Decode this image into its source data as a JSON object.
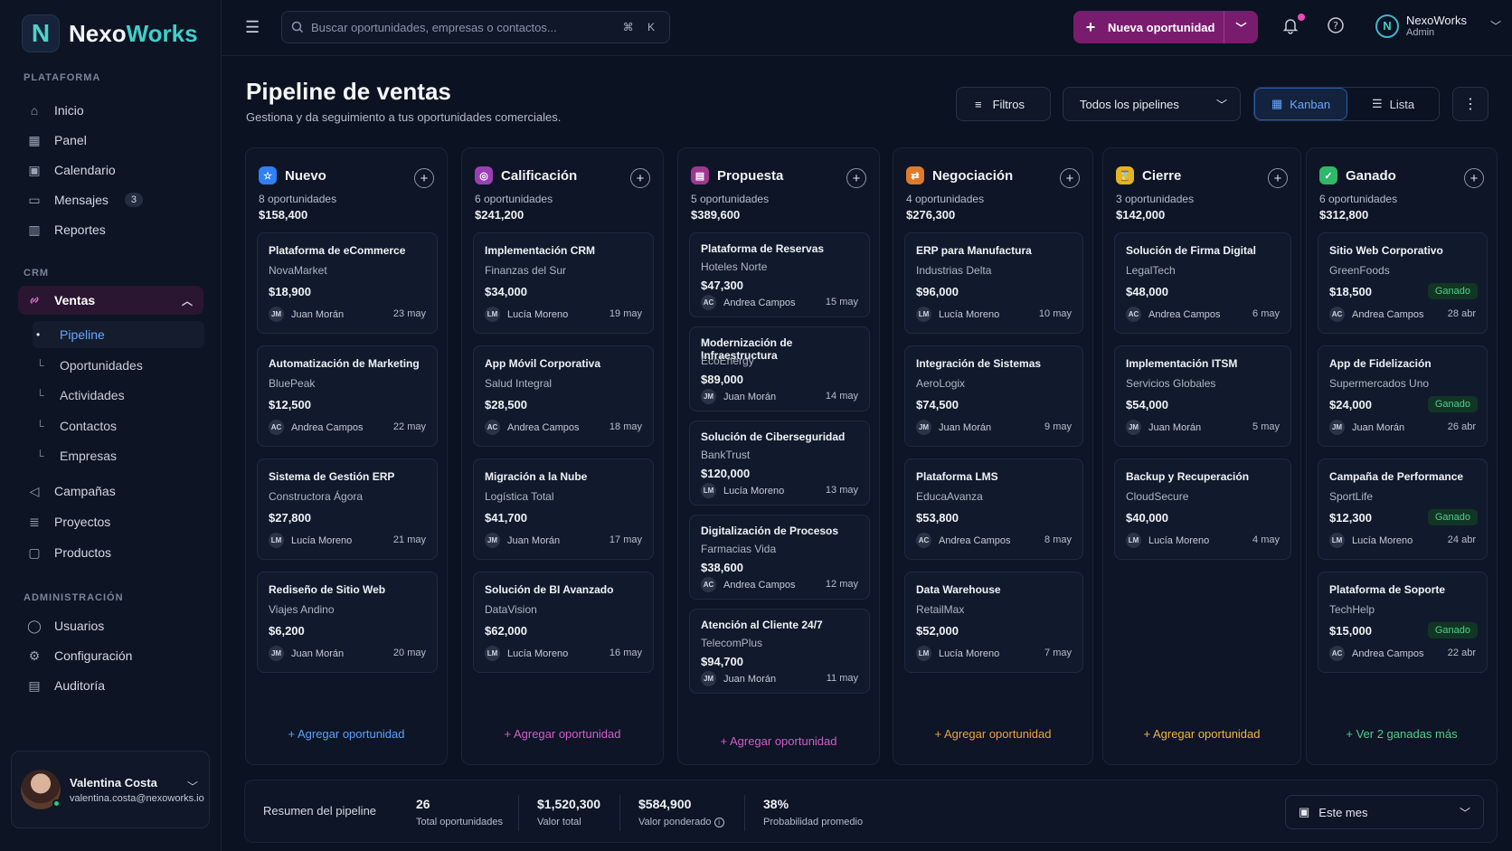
{
  "brand": {
    "name_a": "Nexo",
    "name_b": "Works",
    "mark": "N"
  },
  "sidebar": {
    "sections": {
      "platform": "PLATAFORMA",
      "crm": "CRM",
      "admin": "ADMINISTRACIÓN"
    },
    "platform_items": [
      {
        "label": "Inicio",
        "icon": "home-icon"
      },
      {
        "label": "Panel",
        "icon": "grid-icon"
      },
      {
        "label": "Calendario",
        "icon": "calendar-icon"
      },
      {
        "label": "Mensajes",
        "icon": "message-icon",
        "badge": "3"
      },
      {
        "label": "Reportes",
        "icon": "chart-icon"
      }
    ],
    "crm_item": {
      "label": "Ventas",
      "icon": "link-icon"
    },
    "crm_sub": [
      "Pipeline",
      "Oportunidades",
      "Actividades",
      "Contactos",
      "Empresas"
    ],
    "crm_items": [
      {
        "label": "Campañas",
        "icon": "megaphone-icon"
      },
      {
        "label": "Proyectos",
        "icon": "stack-icon"
      },
      {
        "label": "Productos",
        "icon": "box-icon"
      }
    ],
    "admin_items": [
      {
        "label": "Usuarios",
        "icon": "user-icon"
      },
      {
        "label": "Configuración",
        "icon": "gear-icon"
      },
      {
        "label": "Auditoría",
        "icon": "audit-icon"
      }
    ],
    "user": {
      "name": "Valentina Costa",
      "email": "valentina.costa@nexoworks.io"
    }
  },
  "topbar": {
    "search_placeholder": "Buscar oportunidades, empresas o contactos...",
    "shortcut": "⌘ K",
    "new_button": "Nueva oportunidad",
    "org_name": "NexoWorks",
    "org_role": "Admin"
  },
  "header": {
    "title": "Pipeline de ventas",
    "subtitle": "Gestiona y da seguimiento a tus oportunidades comerciales.",
    "filters": "Filtros",
    "pipeline_select": "Todos los pipelines",
    "view_kanban": "Kanban",
    "view_list": "Lista"
  },
  "columns": [
    {
      "name": "Nuevo",
      "color": "#2f7ff5",
      "icon": "☆",
      "count": "8 oportunidades",
      "total": "$158,400",
      "footer": "+ Agregar oportunidad",
      "footer_color": "#5aa2ff",
      "cards": [
        {
          "title": "Plataforma de eCommerce",
          "company": "NovaMarket",
          "amount": "$18,900",
          "initials": "JM",
          "owner": "Juan Morán",
          "date": "23 may"
        },
        {
          "title": "Automatización de Marketing",
          "company": "BluePeak",
          "amount": "$12,500",
          "initials": "AC",
          "owner": "Andrea Campos",
          "date": "22 may"
        },
        {
          "title": "Sistema de Gestión ERP",
          "company": "Constructora Ágora",
          "amount": "$27,800",
          "initials": "LM",
          "owner": "Lucía Moreno",
          "date": "21 may"
        },
        {
          "title": "Rediseño de Sitio Web",
          "company": "Viajes Andino",
          "amount": "$6,200",
          "initials": "JM",
          "owner": "Juan Morán",
          "date": "20 may"
        }
      ]
    },
    {
      "name": "Calificación",
      "color": "#9b3fb5",
      "icon": "◎",
      "count": "6 oportunidades",
      "total": "$241,200",
      "footer": "+ Agregar oportunidad",
      "footer_color": "#d65bc7",
      "cards": [
        {
          "title": "Implementación CRM",
          "company": "Finanzas del Sur",
          "amount": "$34,000",
          "initials": "LM",
          "owner": "Lucía Moreno",
          "date": "19 may"
        },
        {
          "title": "App Móvil Corporativa",
          "company": "Salud Integral",
          "amount": "$28,500",
          "initials": "AC",
          "owner": "Andrea Campos",
          "date": "18 may"
        },
        {
          "title": "Migración a la Nube",
          "company": "Logística Total",
          "amount": "$41,700",
          "initials": "JM",
          "owner": "Juan Morán",
          "date": "17 may"
        },
        {
          "title": "Solución de BI Avanzado",
          "company": "DataVision",
          "amount": "$62,000",
          "initials": "LM",
          "owner": "Lucía Moreno",
          "date": "16 may"
        }
      ]
    },
    {
      "name": "Propuesta",
      "color": "#a0378f",
      "icon": "▤",
      "count": "5 oportunidades",
      "total": "$389,600",
      "footer": "+ Agregar oportunidad",
      "footer_color": "#d65bc7",
      "cards": [
        {
          "title": "Plataforma de Reservas",
          "company": "Hoteles Norte",
          "amount": "$47,300",
          "initials": "AC",
          "owner": "Andrea Campos",
          "date": "15 may"
        },
        {
          "title": "Modernización de Infraestructura",
          "company": "EcoEnergy",
          "amount": "$89,000",
          "initials": "JM",
          "owner": "Juan Morán",
          "date": "14 may"
        },
        {
          "title": "Solución de Ciberseguridad",
          "company": "BankTrust",
          "amount": "$120,000",
          "initials": "LM",
          "owner": "Lucía Moreno",
          "date": "13 may"
        },
        {
          "title": "Digitalización de Procesos",
          "company": "Farmacias Vida",
          "amount": "$38,600",
          "initials": "AC",
          "owner": "Andrea Campos",
          "date": "12 may"
        },
        {
          "title": "Atención al Cliente 24/7",
          "company": "TelecomPlus",
          "amount": "$94,700",
          "initials": "JM",
          "owner": "Juan Morán",
          "date": "11 may"
        }
      ]
    },
    {
      "name": "Negociación",
      "color": "#e07a2a",
      "icon": "⇄",
      "count": "4 oportunidades",
      "total": "$276,300",
      "footer": "+ Agregar oportunidad",
      "footer_color": "#f0a23a",
      "cards": [
        {
          "title": "ERP para Manufactura",
          "company": "Industrias Delta",
          "amount": "$96,000",
          "initials": "LM",
          "owner": "Lucía Moreno",
          "date": "10 may"
        },
        {
          "title": "Integración de Sistemas",
          "company": "AeroLogix",
          "amount": "$74,500",
          "initials": "JM",
          "owner": "Juan Morán",
          "date": "9 may"
        },
        {
          "title": "Plataforma LMS",
          "company": "EducaAvanza",
          "amount": "$53,800",
          "initials": "AC",
          "owner": "Andrea Campos",
          "date": "8 may"
        },
        {
          "title": "Data Warehouse",
          "company": "RetailMax",
          "amount": "$52,000",
          "initials": "LM",
          "owner": "Lucía Moreno",
          "date": "7 may"
        }
      ]
    },
    {
      "name": "Cierre",
      "color": "#e6b51e",
      "icon": "⌛",
      "count": "3 oportunidades",
      "total": "$142,000",
      "footer": "+ Agregar oportunidad",
      "footer_color": "#f0b73a",
      "cards": [
        {
          "title": "Solución de Firma Digital",
          "company": "LegalTech",
          "amount": "$48,000",
          "initials": "AC",
          "owner": "Andrea Campos",
          "date": "6 may"
        },
        {
          "title": "Implementación ITSM",
          "company": "Servicios Globales",
          "amount": "$54,000",
          "initials": "JM",
          "owner": "Juan Morán",
          "date": "5 may"
        },
        {
          "title": "Backup y Recuperación",
          "company": "CloudSecure",
          "amount": "$40,000",
          "initials": "LM",
          "owner": "Lucía Moreno",
          "date": "4 may"
        }
      ]
    },
    {
      "name": "Ganado",
      "color": "#2fb86a",
      "icon": "✓",
      "count": "6 oportunidades",
      "total": "$312,800",
      "footer": "+ Ver 2 ganadas más",
      "footer_color": "#4cd18a",
      "cards": [
        {
          "title": "Sitio Web Corporativo",
          "company": "GreenFoods",
          "amount": "$18,500",
          "initials": "AC",
          "owner": "Andrea Campos",
          "date": "28 abr",
          "status": "Ganado"
        },
        {
          "title": "App de Fidelización",
          "company": "Supermercados Uno",
          "amount": "$24,000",
          "initials": "JM",
          "owner": "Juan Morán",
          "date": "26 abr",
          "status": "Ganado"
        },
        {
          "title": "Campaña de Performance",
          "company": "SportLife",
          "amount": "$12,300",
          "initials": "LM",
          "owner": "Lucía Moreno",
          "date": "24 abr",
          "status": "Ganado"
        },
        {
          "title": "Plataforma de Soporte",
          "company": "TechHelp",
          "amount": "$15,000",
          "initials": "AC",
          "owner": "Andrea Campos",
          "date": "22 abr",
          "status": "Ganado"
        }
      ]
    }
  ],
  "summary": {
    "label": "Resumen del pipeline",
    "total_count": "26",
    "total_count_label": "Total oportunidades",
    "total_value": "$1,520,300",
    "total_value_label": "Valor total",
    "weighted": "$584,900",
    "weighted_label": "Valor ponderado",
    "probability": "38%",
    "probability_label": "Probabilidad promedio",
    "period": "Este mes"
  }
}
